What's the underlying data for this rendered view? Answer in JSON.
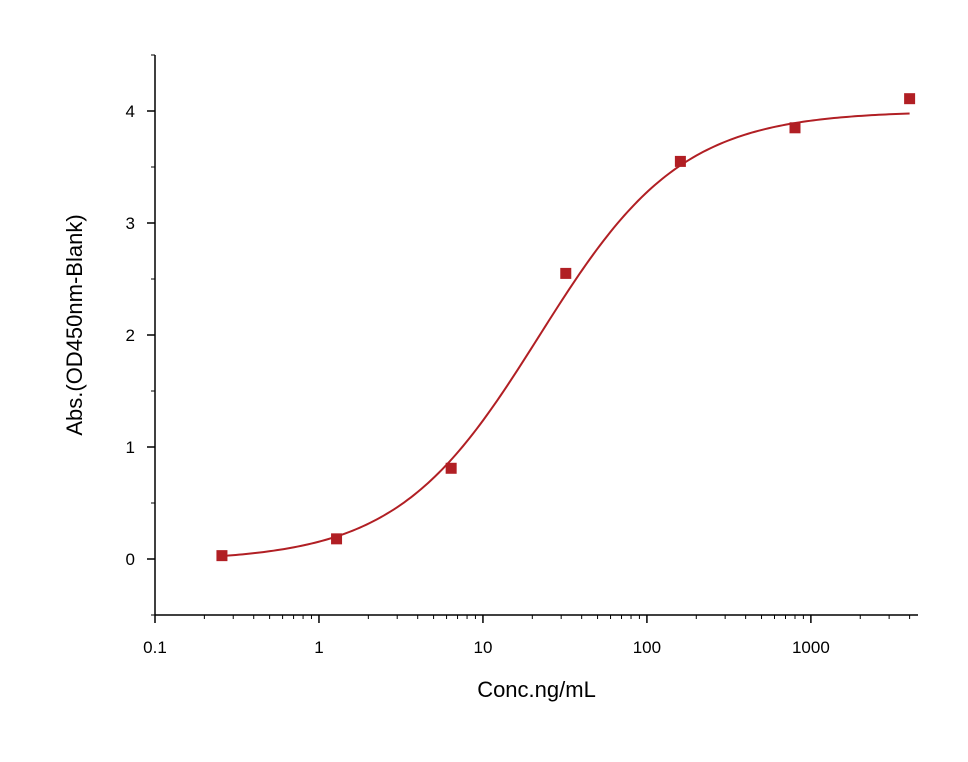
{
  "chart_data": {
    "type": "scatter",
    "title": "",
    "xlabel": "Conc.ng/mL",
    "ylabel": "Abs.(OD450nm-Blank)",
    "xscale": "log",
    "xlim": [
      0.1,
      4500
    ],
    "ylim": [
      -0.5,
      4.5
    ],
    "x_ticks": [
      0.1,
      1,
      10,
      100,
      1000
    ],
    "x_tick_labels": [
      "0.1",
      "1",
      "10",
      "100",
      "1000"
    ],
    "y_ticks": [
      0,
      1,
      2,
      3,
      4
    ],
    "y_tick_labels": [
      "0",
      "1",
      "2",
      "3",
      "4"
    ],
    "grid": false,
    "legend": "none",
    "color": "#b11f24",
    "series": [
      {
        "points": [
          {
            "x": 0.256,
            "y": 0.03
          },
          {
            "x": 1.28,
            "y": 0.18
          },
          {
            "x": 6.4,
            "y": 0.81
          },
          {
            "x": 32,
            "y": 2.55
          },
          {
            "x": 160,
            "y": 3.55
          },
          {
            "x": 800,
            "y": 3.85
          },
          {
            "x": 4000,
            "y": 4.11
          }
        ]
      }
    ],
    "fit_curve": {
      "model": "4PL",
      "bottom": -0.02,
      "top": 4.0,
      "ec50": 22,
      "hill": 1.0,
      "x_range": [
        0.256,
        4000
      ]
    }
  }
}
